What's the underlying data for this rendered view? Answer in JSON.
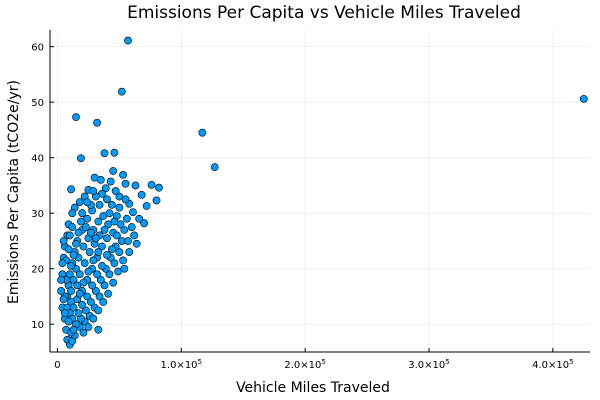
{
  "chart_data": {
    "type": "scatter",
    "title": "Emissions Per Capita vs Vehicle Miles Traveled",
    "xlabel": "Vehicle Miles Traveled",
    "ylabel": "Emissions Per Capita (tCO2e/yr)",
    "xlim": [
      -6000,
      430000
    ],
    "ylim": [
      5,
      63
    ],
    "x_ticks": [
      {
        "value": 0,
        "label": "0"
      },
      {
        "value": 100000,
        "mantissa": "1.0×10",
        "exp": "5"
      },
      {
        "value": 200000,
        "mantissa": "2.0×10",
        "exp": "5"
      },
      {
        "value": 300000,
        "mantissa": "3.0×10",
        "exp": "5"
      },
      {
        "value": 400000,
        "mantissa": "4.0×10",
        "exp": "5"
      }
    ],
    "y_ticks": [
      10,
      20,
      30,
      40,
      50,
      60
    ],
    "grid": true,
    "legend": false,
    "marker_color": "#009af9",
    "series": [
      {
        "points": [
          [
            57000,
            61.1
          ],
          [
            52000,
            51.9
          ],
          [
            425000,
            50.6
          ],
          [
            15000,
            47.3
          ],
          [
            32000,
            46.3
          ],
          [
            117000,
            44.5
          ],
          [
            127000,
            38.3
          ],
          [
            19000,
            39.9
          ],
          [
            38000,
            40.8
          ],
          [
            46000,
            40.9
          ],
          [
            45000,
            37.6
          ],
          [
            53000,
            36.9
          ],
          [
            30000,
            36.4
          ],
          [
            43000,
            35.7
          ],
          [
            55000,
            35.3
          ],
          [
            63000,
            35.0
          ],
          [
            76000,
            35.1
          ],
          [
            82000,
            34.6
          ],
          [
            11000,
            34.3
          ],
          [
            25000,
            34.2
          ],
          [
            68000,
            33.3
          ],
          [
            80000,
            32.3
          ],
          [
            72000,
            31.3
          ],
          [
            66000,
            29.0
          ],
          [
            70000,
            28.2
          ],
          [
            61000,
            30.2
          ],
          [
            58000,
            31.7
          ],
          [
            50000,
            33.0
          ],
          [
            36000,
            33.5
          ],
          [
            22000,
            33.0
          ],
          [
            18000,
            32.0
          ],
          [
            14000,
            31.0
          ],
          [
            12000,
            30.0
          ],
          [
            9000,
            28.0
          ],
          [
            8000,
            26.0
          ],
          [
            6000,
            24.0
          ],
          [
            5000,
            22.0
          ],
          [
            4000,
            19.0
          ],
          [
            3000,
            16.0
          ],
          [
            4000,
            13.0
          ],
          [
            6000,
            11.0
          ],
          [
            7000,
            9.0
          ],
          [
            8000,
            7.2
          ],
          [
            10000,
            6.3
          ],
          [
            12000,
            7.0
          ],
          [
            14000,
            8.0
          ],
          [
            18000,
            9.5
          ],
          [
            22000,
            10.5
          ],
          [
            26000,
            11.5
          ],
          [
            30000,
            13.0
          ],
          [
            34000,
            15.0
          ],
          [
            38000,
            17.0
          ],
          [
            42000,
            19.0
          ],
          [
            46000,
            21.0
          ],
          [
            50000,
            23.0
          ],
          [
            52000,
            25.0
          ],
          [
            54000,
            27.0
          ],
          [
            48000,
            29.5
          ],
          [
            44000,
            31.5
          ],
          [
            40000,
            32.5
          ],
          [
            34000,
            31.5
          ],
          [
            28000,
            30.5
          ],
          [
            24000,
            29.0
          ],
          [
            20000,
            27.0
          ],
          [
            16000,
            25.0
          ],
          [
            14000,
            23.0
          ],
          [
            12000,
            21.0
          ],
          [
            10000,
            19.0
          ],
          [
            9000,
            17.0
          ],
          [
            8000,
            15.0
          ],
          [
            8000,
            13.0
          ],
          [
            10000,
            12.0
          ],
          [
            12000,
            11.0
          ],
          [
            15000,
            10.0
          ],
          [
            19000,
            11.0
          ],
          [
            23000,
            12.5
          ],
          [
            27000,
            14.0
          ],
          [
            31000,
            16.0
          ],
          [
            35000,
            18.0
          ],
          [
            39000,
            20.0
          ],
          [
            43000,
            22.0
          ],
          [
            47000,
            24.0
          ],
          [
            45000,
            26.5
          ],
          [
            41000,
            28.0
          ],
          [
            37000,
            29.5
          ],
          [
            33000,
            28.5
          ],
          [
            29000,
            27.0
          ],
          [
            25000,
            25.5
          ],
          [
            21000,
            24.0
          ],
          [
            17000,
            22.0
          ],
          [
            15000,
            20.0
          ],
          [
            13000,
            18.0
          ],
          [
            11000,
            16.0
          ],
          [
            11000,
            14.0
          ],
          [
            13000,
            13.0
          ],
          [
            16000,
            14.5
          ],
          [
            20000,
            16.0
          ],
          [
            24000,
            18.0
          ],
          [
            28000,
            20.0
          ],
          [
            32000,
            22.0
          ],
          [
            36000,
            24.0
          ],
          [
            40000,
            25.5
          ],
          [
            38000,
            27.0
          ],
          [
            34000,
            26.0
          ],
          [
            30000,
            24.5
          ],
          [
            26000,
            23.0
          ],
          [
            22000,
            21.0
          ],
          [
            18000,
            19.0
          ],
          [
            16000,
            17.0
          ],
          [
            18000,
            15.5
          ],
          [
            21000,
            17.5
          ],
          [
            25000,
            19.5
          ],
          [
            29000,
            21.5
          ],
          [
            33000,
            23.0
          ],
          [
            31000,
            25.5
          ],
          [
            27000,
            26.5
          ],
          [
            23000,
            27.5
          ],
          [
            19000,
            28.5
          ],
          [
            17000,
            26.5
          ],
          [
            15000,
            24.5
          ],
          [
            13000,
            22.5
          ],
          [
            11000,
            20.5
          ],
          [
            9000,
            23.5
          ],
          [
            7000,
            21.5
          ],
          [
            7000,
            18.0
          ],
          [
            6000,
            15.0
          ],
          [
            9000,
            10.5
          ],
          [
            11000,
            8.5
          ],
          [
            13000,
            9.0
          ],
          [
            17000,
            12.0
          ],
          [
            20000,
            13.5
          ],
          [
            24000,
            15.0
          ],
          [
            28000,
            17.0
          ],
          [
            32000,
            19.0
          ],
          [
            36000,
            20.5
          ],
          [
            40000,
            22.5
          ],
          [
            44000,
            23.5
          ],
          [
            48000,
            26.0
          ],
          [
            51000,
            28.0
          ],
          [
            56000,
            29.0
          ],
          [
            60000,
            27.5
          ],
          [
            57000,
            25.0
          ],
          [
            53000,
            21.5
          ],
          [
            49000,
            19.5
          ],
          [
            45000,
            17.5
          ],
          [
            41000,
            15.5
          ],
          [
            37000,
            14.0
          ],
          [
            33000,
            12.5
          ],
          [
            29000,
            11.0
          ],
          [
            25000,
            9.5
          ],
          [
            21000,
            8.5
          ],
          [
            33000,
            9.0
          ],
          [
            27000,
            31.5
          ],
          [
            31000,
            33.0
          ],
          [
            39000,
            34.5
          ],
          [
            47000,
            34.0
          ],
          [
            35000,
            36.0
          ],
          [
            10000,
            26.0
          ],
          [
            12000,
            27.5
          ],
          [
            20000,
            30.0
          ],
          [
            24000,
            32.0
          ],
          [
            29000,
            34.0
          ],
          [
            42000,
            30.0
          ],
          [
            46000,
            28.5
          ],
          [
            50000,
            31.0
          ],
          [
            55000,
            32.5
          ],
          [
            62000,
            26.0
          ],
          [
            64000,
            24.5
          ],
          [
            58000,
            23.0
          ],
          [
            54000,
            20.0
          ],
          [
            5000,
            25.0
          ],
          [
            4000,
            21.0
          ],
          [
            3000,
            18.0
          ],
          [
            5000,
            14.5
          ],
          [
            6000,
            12.0
          ]
        ]
      }
    ]
  }
}
